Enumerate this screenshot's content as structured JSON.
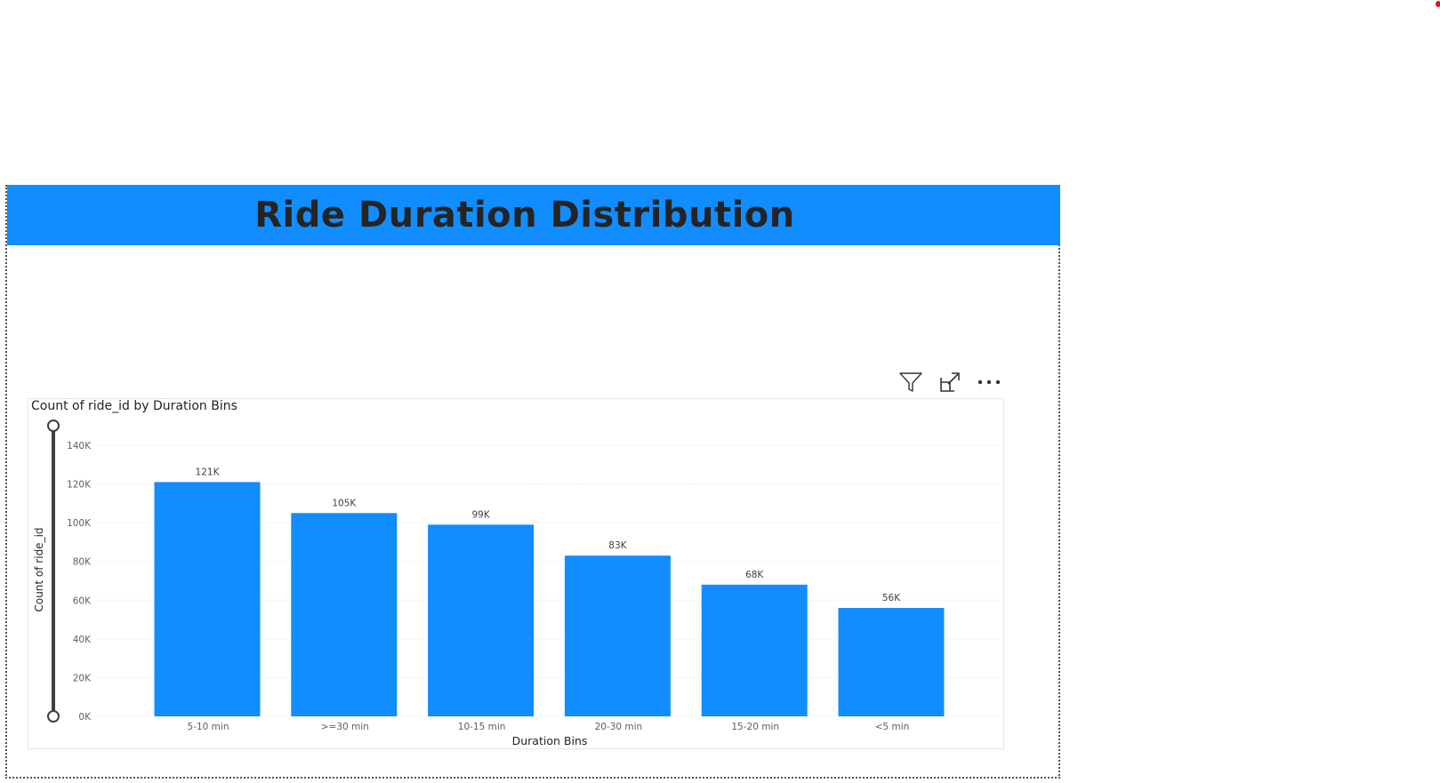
{
  "page": {
    "title": "Ride Duration Distribution"
  },
  "visual_header": {
    "icons": [
      "filter-icon",
      "focus-mode-icon",
      "more-options-icon"
    ]
  },
  "colors": {
    "banner": "#118DFF",
    "bar": "#118DFF",
    "title_text": "#252423",
    "axis_text": "#605E5C",
    "gridline": "#E1E1E1",
    "slider": "#404040"
  },
  "chart_data": {
    "type": "bar",
    "title": "Count of ride_id by Duration Bins",
    "xlabel": "Duration Bins",
    "ylabel": "Count of ride_id",
    "categories": [
      "5-10 min",
      ">=30 min",
      "10-15 min",
      "20-30 min",
      "15-20 min",
      "<5 min"
    ],
    "values": [
      121000,
      105000,
      99000,
      83000,
      68000,
      56000
    ],
    "data_labels": [
      "121K",
      "105K",
      "99K",
      "83K",
      "68K",
      "56K"
    ],
    "ylim": [
      0,
      140000
    ],
    "yticks": [
      0,
      20000,
      40000,
      60000,
      80000,
      100000,
      120000,
      140000
    ],
    "ytick_labels": [
      "0K",
      "20K",
      "40K",
      "60K",
      "80K",
      "100K",
      "120K",
      "140K"
    ],
    "grid": true,
    "legend": "none"
  }
}
